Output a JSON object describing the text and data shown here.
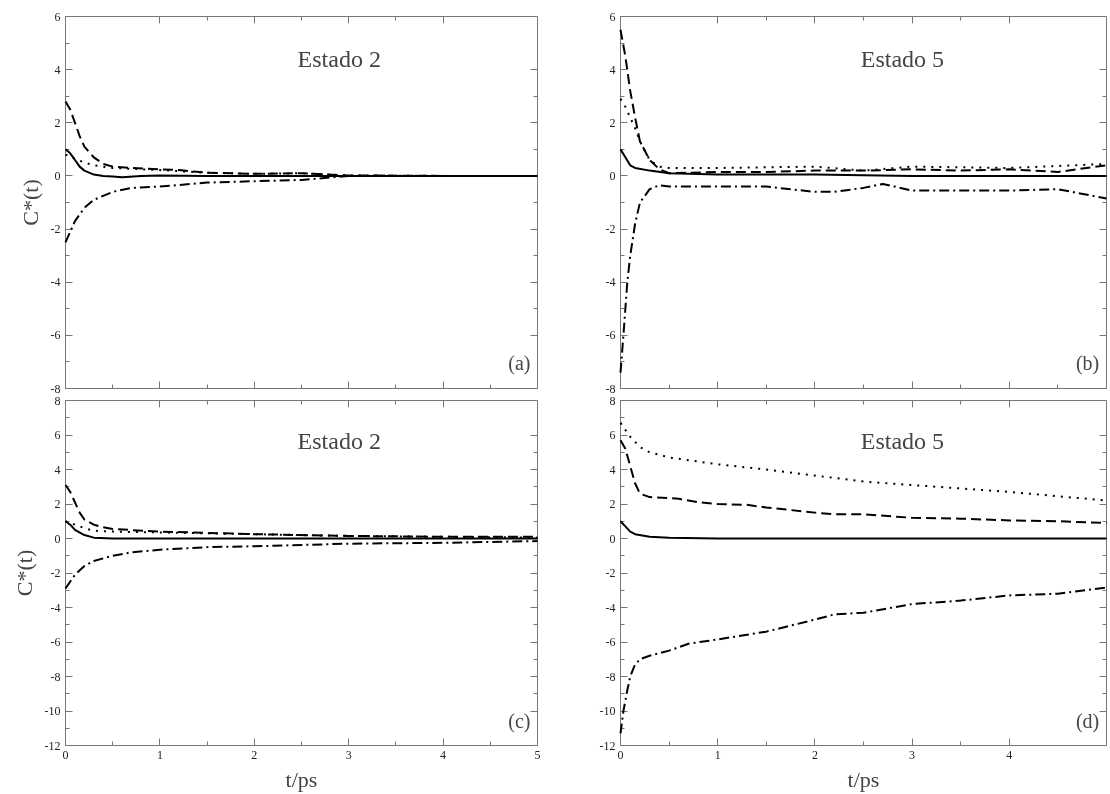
{
  "chart_data": [
    {
      "type": "line",
      "annotations": [
        "Estado 2",
        "(a)"
      ],
      "ylabel": "C*(t)",
      "xlim": [
        0,
        5
      ],
      "ylim": [
        -8,
        6
      ],
      "xticks": [
        0,
        1,
        2,
        3,
        4,
        5
      ],
      "yticks": [
        -8,
        -6,
        -4,
        -2,
        0,
        2,
        4,
        6
      ],
      "tick_labels": "y",
      "grid": false,
      "series": [
        {
          "color": "#000000",
          "line_style": "solid",
          "x": [
            0,
            0.05,
            0.1,
            0.15,
            0.2,
            0.3,
            0.4,
            0.5,
            0.6,
            0.8,
            1,
            1.5,
            2,
            3,
            4,
            5
          ],
          "values": [
            1,
            0.85,
            0.6,
            0.35,
            0.2,
            0.05,
            0,
            -0.02,
            -0.05,
            0,
            0.02,
            0,
            0,
            0,
            0,
            0
          ]
        },
        {
          "color": "#000000",
          "line_style": "dashed",
          "x": [
            0,
            0.05,
            0.1,
            0.15,
            0.2,
            0.3,
            0.4,
            0.5,
            0.7,
            1,
            1.2,
            1.5,
            2,
            2.5,
            3,
            4,
            5
          ],
          "values": [
            2.8,
            2.5,
            2,
            1.5,
            1.1,
            0.7,
            0.45,
            0.35,
            0.3,
            0.25,
            0.22,
            0.12,
            0.08,
            0.1,
            0.02,
            0,
            0
          ]
        },
        {
          "color": "#000000",
          "line_style": "dotted",
          "x": [
            0,
            0.05,
            0.1,
            0.2,
            0.3,
            0.5,
            0.8,
            1,
            1.5,
            2,
            2.5,
            3,
            4,
            5
          ],
          "values": [
            0.8,
            0.75,
            0.65,
            0.5,
            0.4,
            0.3,
            0.25,
            0.22,
            0.12,
            0.08,
            0.1,
            0.02,
            0,
            0
          ]
        },
        {
          "color": "#000000",
          "line_style": "dashdot",
          "x": [
            0,
            0.05,
            0.1,
            0.2,
            0.3,
            0.5,
            0.7,
            1,
            1.5,
            2,
            2.5,
            3,
            4,
            5
          ],
          "values": [
            -2.5,
            -2.1,
            -1.7,
            -1.2,
            -0.9,
            -0.6,
            -0.45,
            -0.4,
            -0.25,
            -0.2,
            -0.15,
            0,
            0,
            0
          ]
        }
      ]
    },
    {
      "type": "line",
      "annotations": [
        "Estado 5",
        "(b)"
      ],
      "xlim": [
        0,
        5
      ],
      "ylim": [
        -8,
        6
      ],
      "xticks": [
        0,
        1,
        2,
        3,
        4,
        5
      ],
      "yticks": [
        -8,
        -6,
        -4,
        -2,
        0,
        2,
        4,
        6
      ],
      "tick_labels": "y",
      "grid": false,
      "series": [
        {
          "color": "#000000",
          "line_style": "solid",
          "x": [
            0,
            0.05,
            0.1,
            0.15,
            0.3,
            0.5,
            1,
            2,
            3,
            4,
            5
          ],
          "values": [
            1,
            0.7,
            0.4,
            0.3,
            0.2,
            0.1,
            0.05,
            0.05,
            0,
            0,
            0
          ]
        },
        {
          "color": "#000000",
          "line_style": "dashed",
          "x": [
            0,
            0.05,
            0.1,
            0.15,
            0.2,
            0.3,
            0.4,
            0.5,
            1,
            1.5,
            2,
            2.5,
            3,
            3.5,
            4,
            4.5,
            5
          ],
          "values": [
            5.5,
            4.5,
            3.2,
            2.2,
            1.3,
            0.6,
            0.25,
            0.1,
            0.15,
            0.15,
            0.2,
            0.2,
            0.25,
            0.2,
            0.25,
            0.15,
            0.4
          ]
        },
        {
          "color": "#000000",
          "line_style": "dotted",
          "x": [
            0,
            0.05,
            0.1,
            0.15,
            0.2,
            0.3,
            0.4,
            0.5,
            1,
            2,
            2.5,
            3,
            4,
            5
          ],
          "values": [
            2.9,
            2.6,
            2.2,
            1.8,
            1.3,
            0.6,
            0.35,
            0.3,
            0.3,
            0.35,
            0.2,
            0.35,
            0.3,
            0.45
          ]
        },
        {
          "color": "#000000",
          "line_style": "dashdot",
          "x": [
            0,
            0.03,
            0.07,
            0.1,
            0.15,
            0.2,
            0.3,
            0.4,
            0.5,
            1,
            1.5,
            2,
            2.2,
            2.5,
            2.7,
            3,
            3.5,
            4,
            4.5,
            5
          ],
          "values": [
            -7.4,
            -6,
            -4,
            -3,
            -1.8,
            -1,
            -0.5,
            -0.35,
            -0.4,
            -0.4,
            -0.4,
            -0.6,
            -0.6,
            -0.45,
            -0.3,
            -0.55,
            -0.55,
            -0.55,
            -0.5,
            -0.85
          ]
        }
      ]
    },
    {
      "type": "line",
      "annotations": [
        "Estado 2",
        "(c)"
      ],
      "xlabel": "t/ps",
      "ylabel": "C*(t)",
      "xlim": [
        0,
        5
      ],
      "ylim": [
        -12,
        8
      ],
      "xticks": [
        0,
        1,
        2,
        3,
        4,
        5
      ],
      "yticks": [
        -12,
        -10,
        -8,
        -6,
        -4,
        -2,
        0,
        2,
        4,
        6,
        8
      ],
      "grid": false,
      "series": [
        {
          "color": "#000000",
          "line_style": "solid",
          "x": [
            0,
            0.05,
            0.1,
            0.2,
            0.3,
            0.5,
            1,
            2,
            3,
            4,
            5
          ],
          "values": [
            1,
            0.8,
            0.5,
            0.2,
            0.05,
            0,
            0,
            0,
            0,
            0,
            0
          ]
        },
        {
          "color": "#000000",
          "line_style": "dashed",
          "x": [
            0,
            0.05,
            0.1,
            0.15,
            0.2,
            0.3,
            0.4,
            0.5,
            1,
            2,
            3,
            4,
            5
          ],
          "values": [
            3.1,
            2.7,
            2.1,
            1.5,
            1.1,
            0.8,
            0.65,
            0.55,
            0.4,
            0.25,
            0.15,
            0.1,
            0.1
          ]
        },
        {
          "color": "#000000",
          "line_style": "dotted",
          "x": [
            0,
            0.05,
            0.1,
            0.2,
            0.3,
            0.5,
            1,
            2,
            3,
            4,
            5
          ],
          "values": [
            1,
            0.9,
            0.8,
            0.6,
            0.45,
            0.4,
            0.35,
            0.25,
            0.15,
            0.1,
            0.05
          ]
        },
        {
          "color": "#000000",
          "line_style": "dashdot",
          "x": [
            0,
            0.05,
            0.1,
            0.2,
            0.3,
            0.5,
            0.7,
            1,
            1.5,
            2,
            3,
            4,
            5
          ],
          "values": [
            -2.9,
            -2.5,
            -2.1,
            -1.6,
            -1.3,
            -1,
            -0.8,
            -0.65,
            -0.5,
            -0.45,
            -0.3,
            -0.25,
            -0.15
          ]
        }
      ]
    },
    {
      "type": "line",
      "annotations": [
        "Estado 5",
        "(d)"
      ],
      "xlabel": "t/ps",
      "xlim": [
        0,
        5
      ],
      "ylim": [
        -12,
        8
      ],
      "xticks": [
        0,
        1,
        2,
        3,
        4
      ],
      "yticks": [
        -12,
        -10,
        -8,
        -6,
        -4,
        -2,
        0,
        2,
        4,
        6,
        8
      ],
      "grid": false,
      "series": [
        {
          "color": "#000000",
          "line_style": "solid",
          "x": [
            0,
            0.05,
            0.1,
            0.15,
            0.3,
            0.5,
            1,
            2,
            3,
            4,
            5
          ],
          "values": [
            1,
            0.7,
            0.4,
            0.25,
            0.1,
            0.05,
            0,
            0,
            0,
            0,
            0
          ]
        },
        {
          "color": "#000000",
          "line_style": "dashed",
          "x": [
            0,
            0.05,
            0.1,
            0.15,
            0.2,
            0.3,
            0.5,
            0.6,
            0.8,
            1,
            1.3,
            1.5,
            2,
            2.2,
            2.5,
            3,
            3.5,
            4,
            4.5,
            5
          ],
          "values": [
            5.7,
            5.2,
            4.2,
            3.2,
            2.6,
            2.4,
            2.35,
            2.3,
            2.1,
            2,
            1.95,
            1.8,
            1.5,
            1.4,
            1.4,
            1.2,
            1.15,
            1.05,
            1,
            0.9
          ]
        },
        {
          "color": "#000000",
          "line_style": "dotted",
          "x": [
            0,
            0.05,
            0.1,
            0.2,
            0.3,
            0.5,
            1,
            1.5,
            2,
            2.5,
            3,
            3.5,
            4,
            4.5,
            5
          ],
          "values": [
            6.7,
            6.3,
            5.9,
            5.3,
            5,
            4.7,
            4.3,
            4,
            3.65,
            3.3,
            3.1,
            2.9,
            2.7,
            2.45,
            2.2
          ]
        },
        {
          "color": "#000000",
          "line_style": "dashdot",
          "x": [
            0,
            0.03,
            0.07,
            0.1,
            0.15,
            0.2,
            0.3,
            0.5,
            0.7,
            1,
            1.5,
            2,
            2.2,
            2.5,
            3,
            3.5,
            4,
            4.5,
            5
          ],
          "values": [
            -11.3,
            -10,
            -8.8,
            -8,
            -7.3,
            -7,
            -6.8,
            -6.5,
            -6.1,
            -5.85,
            -5.4,
            -4.7,
            -4.4,
            -4.3,
            -3.8,
            -3.6,
            -3.3,
            -3.2,
            -2.85
          ]
        }
      ]
    }
  ]
}
